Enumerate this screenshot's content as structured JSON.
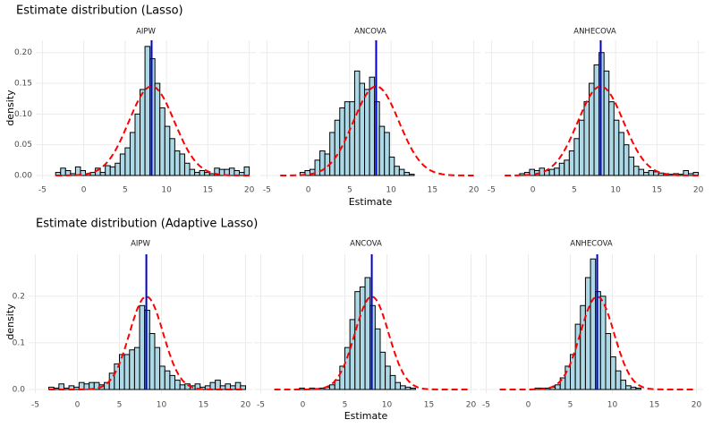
{
  "chart_data": [
    {
      "type": "histogram",
      "title": "Estimate distribution (Lasso)",
      "xlabel": "Estimate",
      "ylabel": "density",
      "xlim": [
        -5.8,
        20.8
      ],
      "xticks": [
        -5,
        0,
        5,
        10,
        15,
        20
      ],
      "ylim": [
        0,
        0.22
      ],
      "yticks": [
        {
          "value": 0,
          "label": "0.00"
        },
        {
          "value": 0.05,
          "label": "0.05"
        },
        {
          "value": 0.1,
          "label": "0.10"
        },
        {
          "value": 0.15,
          "label": "0.15"
        },
        {
          "value": 0.2,
          "label": "0.20"
        }
      ],
      "grid": true,
      "color": "#add8e6",
      "edge_color": "#000000",
      "vline": 8.2,
      "vline_color": "#0000cd",
      "curve": {
        "mean": 8.2,
        "sd": 2.75
      },
      "curve_color": "#ff0000",
      "bins": [
        -3.4,
        -2.8,
        -2.2,
        -1.6,
        -1.0,
        -0.4,
        0.2,
        0.8,
        1.4,
        2.0,
        2.6,
        3.2,
        3.8,
        4.4,
        5.0,
        5.6,
        6.2,
        6.8,
        7.4,
        8.0,
        8.6,
        9.2,
        9.8,
        10.4,
        11.0,
        11.6,
        12.2,
        12.8,
        13.4,
        14.0,
        14.6,
        15.2,
        15.8,
        16.4,
        17.0,
        17.6,
        18.2,
        18.8,
        19.4,
        20.0
      ],
      "panels": [
        {
          "title": "AIPW",
          "values": [
            0.005,
            0.012,
            0.008,
            0.003,
            0.014,
            0.008,
            0.003,
            0.005,
            0.012,
            0.005,
            0.016,
            0.014,
            0.02,
            0.035,
            0.045,
            0.07,
            0.1,
            0.14,
            0.21,
            0.19,
            0.15,
            0.11,
            0.08,
            0.06,
            0.04,
            0.035,
            0.02,
            0.01,
            0.005,
            0.008,
            0.005,
            0.003,
            0.012,
            0.01,
            0.01,
            0.012,
            0.008,
            0.005,
            0.014
          ]
        },
        {
          "title": "ANCOVA",
          "values": [
            0,
            0,
            0,
            0,
            0.005,
            0.008,
            0.01,
            0.025,
            0.04,
            0.035,
            0.07,
            0.09,
            0.11,
            0.12,
            0.12,
            0.17,
            0.15,
            0.14,
            0.16,
            0.12,
            0.08,
            0.07,
            0.03,
            0.015,
            0.01,
            0.005,
            0.002,
            0,
            0,
            0,
            0,
            0,
            0,
            0,
            0,
            0,
            0,
            0,
            0
          ]
        },
        {
          "title": "ANHECOVA",
          "values": [
            0,
            0,
            0,
            0.003,
            0.005,
            0.01,
            0.008,
            0.012,
            0.008,
            0.01,
            0.012,
            0.02,
            0.025,
            0.04,
            0.06,
            0.09,
            0.12,
            0.15,
            0.18,
            0.2,
            0.17,
            0.12,
            0.09,
            0.07,
            0.05,
            0.03,
            0.015,
            0.01,
            0.005,
            0.008,
            0.006,
            0.004,
            0.003,
            0.002,
            0.003,
            0.002,
            0.008,
            0.003,
            0.005
          ]
        }
      ]
    },
    {
      "type": "histogram",
      "title": "Estimate distribution (Adaptive Lasso)",
      "xlabel": "Estimate",
      "ylabel": "density",
      "xlim": [
        -5.8,
        20.8
      ],
      "xticks": [
        -5,
        0,
        5,
        10,
        15,
        20
      ],
      "ylim": [
        0,
        0.29
      ],
      "yticks": [
        {
          "value": 0,
          "label": "0.0"
        },
        {
          "value": 0.1,
          "label": "0.1"
        },
        {
          "value": 0.2,
          "label": "0.2"
        }
      ],
      "grid": true,
      "color": "#add8e6",
      "edge_color": "#000000",
      "vline": 8.2,
      "vline_color": "#0000cd",
      "curve": {
        "mean": 8.2,
        "sd": 2.0
      },
      "curve_color": "#ff0000",
      "bins": [
        -3.4,
        -2.8,
        -2.2,
        -1.6,
        -1.0,
        -0.4,
        0.2,
        0.8,
        1.4,
        2.0,
        2.6,
        3.2,
        3.8,
        4.4,
        5.0,
        5.6,
        6.2,
        6.8,
        7.4,
        8.0,
        8.6,
        9.2,
        9.8,
        10.4,
        11.0,
        11.6,
        12.2,
        12.8,
        13.4,
        14.0,
        14.6,
        15.2,
        15.8,
        16.4,
        17.0,
        17.6,
        18.2,
        18.8,
        19.4,
        20.0
      ],
      "panels": [
        {
          "title": "AIPW",
          "values": [
            0.005,
            0.003,
            0.012,
            0.003,
            0.008,
            0.005,
            0.015,
            0.012,
            0.015,
            0.015,
            0.01,
            0.015,
            0.035,
            0.055,
            0.075,
            0.075,
            0.085,
            0.09,
            0.18,
            0.17,
            0.12,
            0.09,
            0.05,
            0.04,
            0.03,
            0.02,
            0.01,
            0.012,
            0.008,
            0.012,
            0.005,
            0.008,
            0.015,
            0.02,
            0.008,
            0.012,
            0.008,
            0.015,
            0.008
          ]
        },
        {
          "title": "ANCOVA",
          "values": [
            0,
            0,
            0,
            0,
            0,
            0.003,
            0,
            0.003,
            0.002,
            0.003,
            0.005,
            0.01,
            0.02,
            0.05,
            0.09,
            0.15,
            0.21,
            0.22,
            0.24,
            0.18,
            0.13,
            0.08,
            0.05,
            0.03,
            0.015,
            0.008,
            0.005,
            0.003,
            0,
            0,
            0,
            0,
            0,
            0,
            0,
            0,
            0,
            0,
            0
          ]
        },
        {
          "title": "ANHECOVA",
          "values": [
            0,
            0,
            0,
            0,
            0,
            0,
            0,
            0.003,
            0.003,
            0.003,
            0.005,
            0.01,
            0.025,
            0.05,
            0.075,
            0.14,
            0.18,
            0.24,
            0.28,
            0.21,
            0.2,
            0.12,
            0.07,
            0.04,
            0.02,
            0.008,
            0.005,
            0.003,
            0,
            0,
            0,
            0,
            0,
            0,
            0,
            0,
            0,
            0,
            0
          ]
        }
      ]
    }
  ]
}
